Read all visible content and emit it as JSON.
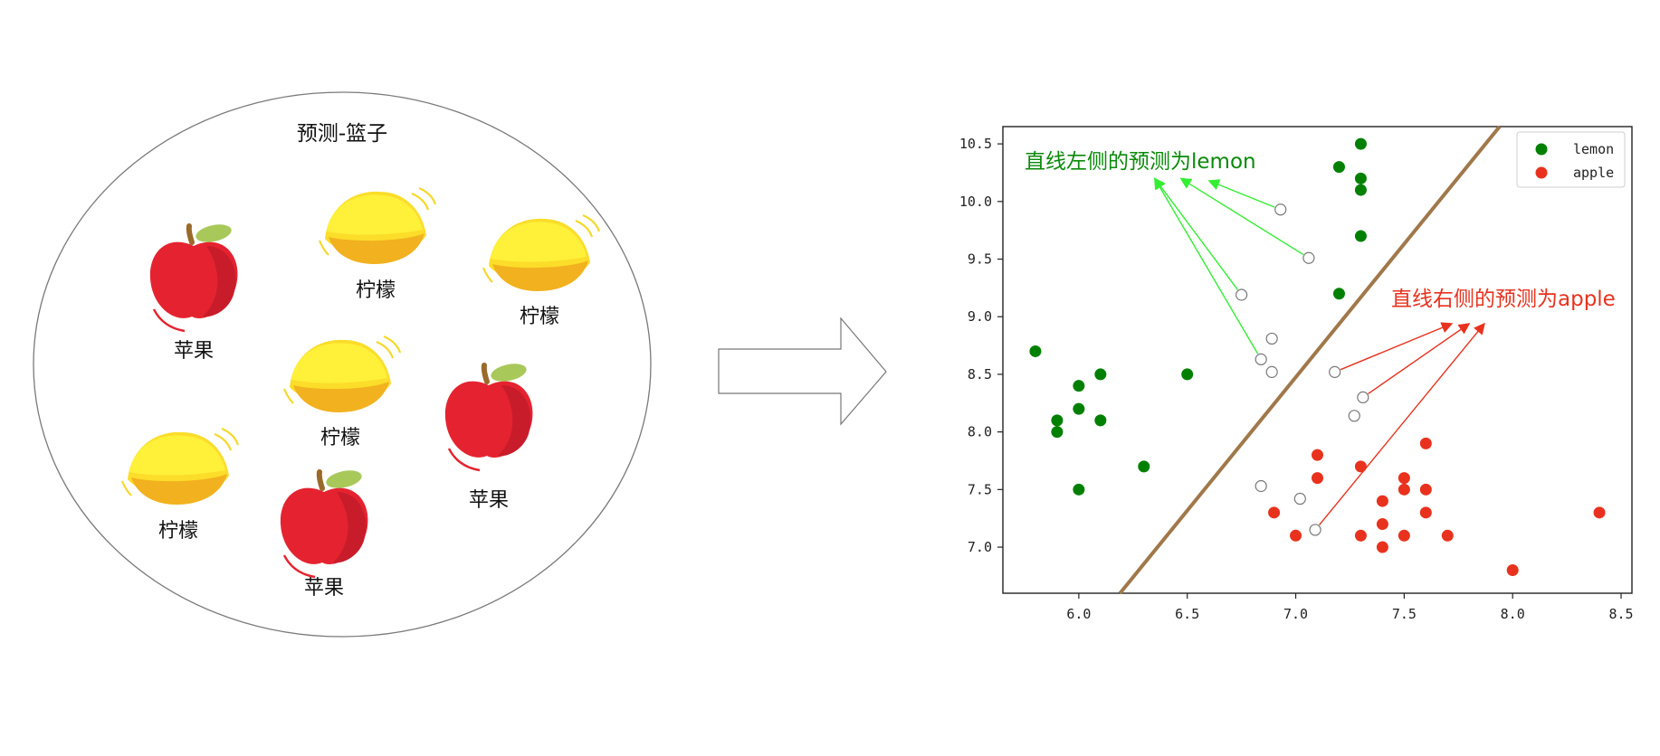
{
  "basket": {
    "title": "预测-篮子",
    "items": [
      {
        "kind": "apple",
        "label": "苹果"
      },
      {
        "kind": "lemon",
        "label": "柠檬"
      },
      {
        "kind": "lemon",
        "label": "柠檬"
      },
      {
        "kind": "lemon",
        "label": "柠檬"
      },
      {
        "kind": "apple",
        "label": "苹果"
      },
      {
        "kind": "lemon",
        "label": "柠檬"
      },
      {
        "kind": "apple",
        "label": "苹果"
      }
    ]
  },
  "arrow_icon": "right-arrow-icon",
  "chart_data": {
    "type": "scatter",
    "xlim": [
      5.65,
      8.55
    ],
    "ylim": [
      6.6,
      10.65
    ],
    "xticks": [
      6.0,
      6.5,
      7.0,
      7.5,
      8.0,
      8.5
    ],
    "yticks": [
      7.0,
      7.5,
      8.0,
      8.5,
      9.0,
      9.5,
      10.0,
      10.5
    ],
    "xtick_labels": [
      "6.0",
      "6.5",
      "7.0",
      "7.5",
      "8.0",
      "8.5"
    ],
    "ytick_labels": [
      "7.0",
      "7.5",
      "8.0",
      "8.5",
      "9.0",
      "9.5",
      "10.0",
      "10.5"
    ],
    "legend_position": "top-right",
    "series": [
      {
        "name": "lemon",
        "color": "#008000",
        "points": [
          [
            5.8,
            8.7
          ],
          [
            5.9,
            8.1
          ],
          [
            5.9,
            8.0
          ],
          [
            6.0,
            8.4
          ],
          [
            6.0,
            8.2
          ],
          [
            6.0,
            7.5
          ],
          [
            6.1,
            8.5
          ],
          [
            6.1,
            8.1
          ],
          [
            6.3,
            7.7
          ],
          [
            6.5,
            8.5
          ],
          [
            7.2,
            10.3
          ],
          [
            7.2,
            9.2
          ],
          [
            7.3,
            10.5
          ],
          [
            7.3,
            10.2
          ],
          [
            7.3,
            10.1
          ],
          [
            7.3,
            9.7
          ]
        ]
      },
      {
        "name": "apple",
        "color": "#e8321e",
        "points": [
          [
            6.9,
            7.3
          ],
          [
            7.0,
            7.1
          ],
          [
            7.1,
            7.8
          ],
          [
            7.1,
            7.6
          ],
          [
            7.3,
            7.7
          ],
          [
            7.3,
            7.1
          ],
          [
            7.4,
            7.4
          ],
          [
            7.4,
            7.2
          ],
          [
            7.4,
            7.0
          ],
          [
            7.5,
            7.6
          ],
          [
            7.5,
            7.5
          ],
          [
            7.5,
            7.1
          ],
          [
            7.6,
            7.9
          ],
          [
            7.6,
            7.5
          ],
          [
            7.6,
            7.3
          ],
          [
            7.7,
            7.1
          ],
          [
            8.0,
            6.8
          ],
          [
            8.4,
            7.3
          ]
        ]
      }
    ],
    "unknown_points": [
      [
        6.93,
        9.93
      ],
      [
        7.06,
        9.51
      ],
      [
        6.75,
        9.19
      ],
      [
        6.89,
        8.81
      ],
      [
        6.84,
        8.63
      ],
      [
        6.89,
        8.52
      ],
      [
        7.18,
        8.52
      ],
      [
        7.31,
        8.3
      ],
      [
        7.27,
        8.14
      ],
      [
        6.84,
        7.53
      ],
      [
        7.02,
        7.42
      ],
      [
        7.09,
        7.15
      ]
    ],
    "unknown_color": "#ffffff",
    "boundary": {
      "x": [
        6.19,
        7.94
      ],
      "y": [
        6.6,
        10.65
      ],
      "color": "#a0784a"
    },
    "annotations": [
      {
        "text": "直线左侧的预测为lemon",
        "color": "#0a8a0a",
        "arrow_color": "#33ee33",
        "targets": [
          [
            6.6,
            10.18
          ],
          [
            6.47,
            10.2
          ],
          [
            6.35,
            10.2
          ],
          [
            6.35,
            10.2
          ]
        ],
        "sources": [
          [
            6.93,
            9.93
          ],
          [
            7.06,
            9.51
          ],
          [
            6.75,
            9.19
          ],
          [
            6.84,
            8.63
          ]
        ]
      },
      {
        "text": "直线右侧的预测为apple",
        "color": "#e8321e",
        "arrow_color": "#e8321e",
        "targets": [
          [
            7.72,
            8.94
          ],
          [
            7.8,
            8.94
          ],
          [
            7.87,
            8.94
          ]
        ],
        "sources": [
          [
            7.18,
            8.52
          ],
          [
            7.31,
            8.3
          ],
          [
            7.09,
            7.15
          ]
        ]
      }
    ]
  }
}
